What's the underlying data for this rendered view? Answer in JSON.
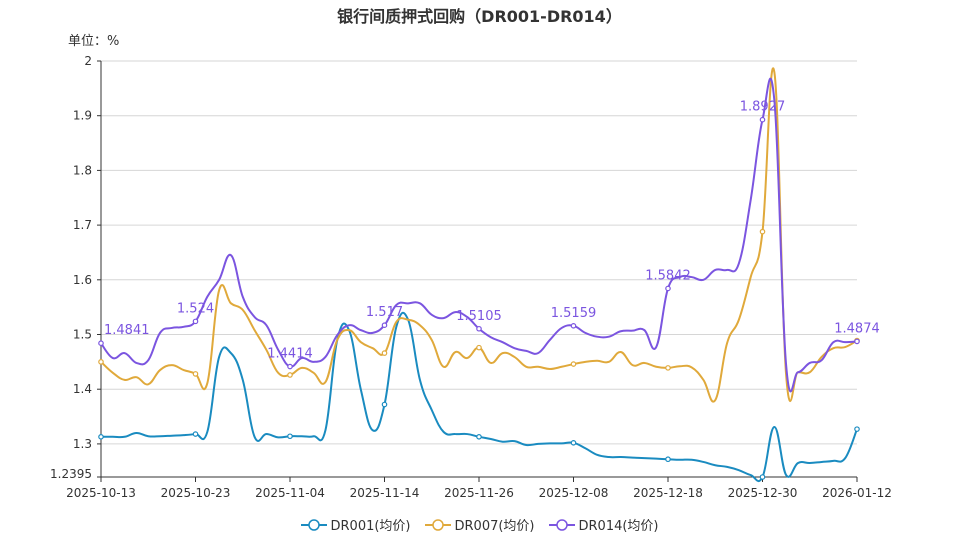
{
  "chart_data": {
    "type": "line",
    "title": "银行间质押式回购（DR001-DR014）",
    "unit_label": "单位：%",
    "ylim": [
      1.2395,
      2
    ],
    "yticks": [
      "2",
      "1.9",
      "1.8",
      "1.7",
      "1.6",
      "1.5",
      "1.4",
      "1.3",
      "1.2395"
    ],
    "xtick_labels": [
      "2025-10-13",
      "2025-10-23",
      "2025-11-04",
      "2025-11-14",
      "2025-11-26",
      "2025-12-08",
      "2025-12-18",
      "2025-12-30",
      "2026-01-12"
    ],
    "grid": true,
    "legend_position": "bottom",
    "x": [
      "2025-10-13",
      "2025-10-14",
      "2025-10-15",
      "2025-10-16",
      "2025-10-17",
      "2025-10-20",
      "2025-10-21",
      "2025-10-22",
      "2025-10-23",
      "2025-10-24",
      "2025-10-27",
      "2025-10-28",
      "2025-10-29",
      "2025-10-30",
      "2025-10-31",
      "2025-11-03",
      "2025-11-04",
      "2025-11-05",
      "2025-11-06",
      "2025-11-07",
      "2025-11-10",
      "2025-11-11",
      "2025-11-12",
      "2025-11-13",
      "2025-11-14",
      "2025-11-17",
      "2025-11-18",
      "2025-11-19",
      "2025-11-20",
      "2025-11-21",
      "2025-11-24",
      "2025-11-25",
      "2025-11-26",
      "2025-11-27",
      "2025-11-28",
      "2025-12-01",
      "2025-12-02",
      "2025-12-03",
      "2025-12-04",
      "2025-12-05",
      "2025-12-08",
      "2025-12-09",
      "2025-12-10",
      "2025-12-11",
      "2025-12-12",
      "2025-12-15",
      "2025-12-16",
      "2025-12-17",
      "2025-12-18",
      "2025-12-19",
      "2025-12-22",
      "2025-12-23",
      "2025-12-24",
      "2025-12-25",
      "2025-12-26",
      "2025-12-29",
      "2025-12-30",
      "2025-12-31",
      "2026-01-04",
      "2026-01-05",
      "2026-01-06",
      "2026-01-07",
      "2026-01-08",
      "2026-01-09",
      "2026-01-12"
    ],
    "series": [
      {
        "name": "DR001(均价)",
        "color": "#1a8bc0",
        "values": [
          1.313,
          1.313,
          1.313,
          1.32,
          1.314,
          1.314,
          1.315,
          1.316,
          1.318,
          1.322,
          1.459,
          1.466,
          1.417,
          1.313,
          1.318,
          1.312,
          1.314,
          1.314,
          1.314,
          1.325,
          1.49,
          1.508,
          1.399,
          1.325,
          1.372,
          1.514,
          1.527,
          1.417,
          1.362,
          1.322,
          1.318,
          1.318,
          1.313,
          1.309,
          1.304,
          1.305,
          1.298,
          1.3,
          1.301,
          1.301,
          1.302,
          1.292,
          1.28,
          1.276,
          1.276,
          1.275,
          1.274,
          1.273,
          1.272,
          1.271,
          1.271,
          1.267,
          1.261,
          1.258,
          1.252,
          1.243,
          1.2395,
          1.331,
          1.243,
          1.265,
          1.265,
          1.267,
          1.269,
          1.274,
          1.327
        ]
      },
      {
        "name": "DR007(均价)",
        "color": "#e0a93b",
        "values": [
          1.45,
          1.43,
          1.417,
          1.422,
          1.409,
          1.435,
          1.444,
          1.435,
          1.428,
          1.411,
          1.581,
          1.557,
          1.545,
          1.508,
          1.472,
          1.43,
          1.426,
          1.439,
          1.43,
          1.413,
          1.49,
          1.508,
          1.486,
          1.475,
          1.466,
          1.523,
          1.527,
          1.517,
          1.49,
          1.441,
          1.468,
          1.457,
          1.476,
          1.448,
          1.466,
          1.459,
          1.441,
          1.441,
          1.437,
          1.441,
          1.446,
          1.45,
          1.452,
          1.45,
          1.468,
          1.444,
          1.448,
          1.441,
          1.439,
          1.442,
          1.44,
          1.417,
          1.38,
          1.484,
          1.527,
          1.605,
          1.688,
          1.98,
          1.426,
          1.431,
          1.431,
          1.459,
          1.475,
          1.477,
          1.489
        ]
      },
      {
        "name": "DR014(均价)",
        "color": "#7b55e0",
        "values": [
          1.4841,
          1.457,
          1.466,
          1.448,
          1.453,
          1.503,
          1.512,
          1.514,
          1.524,
          1.569,
          1.6,
          1.645,
          1.569,
          1.532,
          1.517,
          1.472,
          1.4414,
          1.457,
          1.45,
          1.459,
          1.499,
          1.517,
          1.508,
          1.503,
          1.517,
          1.554,
          1.557,
          1.557,
          1.536,
          1.53,
          1.541,
          1.532,
          1.5105,
          1.495,
          1.486,
          1.475,
          1.47,
          1.466,
          1.49,
          1.512,
          1.5159,
          1.503,
          1.496,
          1.496,
          1.506,
          1.507,
          1.508,
          1.477,
          1.5842,
          1.605,
          1.605,
          1.6,
          1.618,
          1.618,
          1.63,
          1.746,
          1.8927,
          1.929,
          1.444,
          1.431,
          1.448,
          1.453,
          1.486,
          1.486,
          1.4874
        ]
      }
    ],
    "data_labels": [
      {
        "series": "DR014(均价)",
        "x": "2025-10-13",
        "text": "1.4841"
      },
      {
        "series": "DR014(均价)",
        "x": "2025-10-23",
        "text": "1.524"
      },
      {
        "series": "DR014(均价)",
        "x": "2025-11-04",
        "text": "1.4414"
      },
      {
        "series": "DR014(均价)",
        "x": "2025-11-14",
        "text": "1.517"
      },
      {
        "series": "DR014(均价)",
        "x": "2025-11-26",
        "text": "1.5105"
      },
      {
        "series": "DR014(均价)",
        "x": "2025-12-08",
        "text": "1.5159"
      },
      {
        "series": "DR014(均价)",
        "x": "2025-12-18",
        "text": "1.5842"
      },
      {
        "series": "DR014(均价)",
        "x": "2025-12-30",
        "text": "1.8927"
      },
      {
        "series": "DR014(均价)",
        "x": "2026-01-12",
        "text": "1.4874"
      }
    ]
  }
}
